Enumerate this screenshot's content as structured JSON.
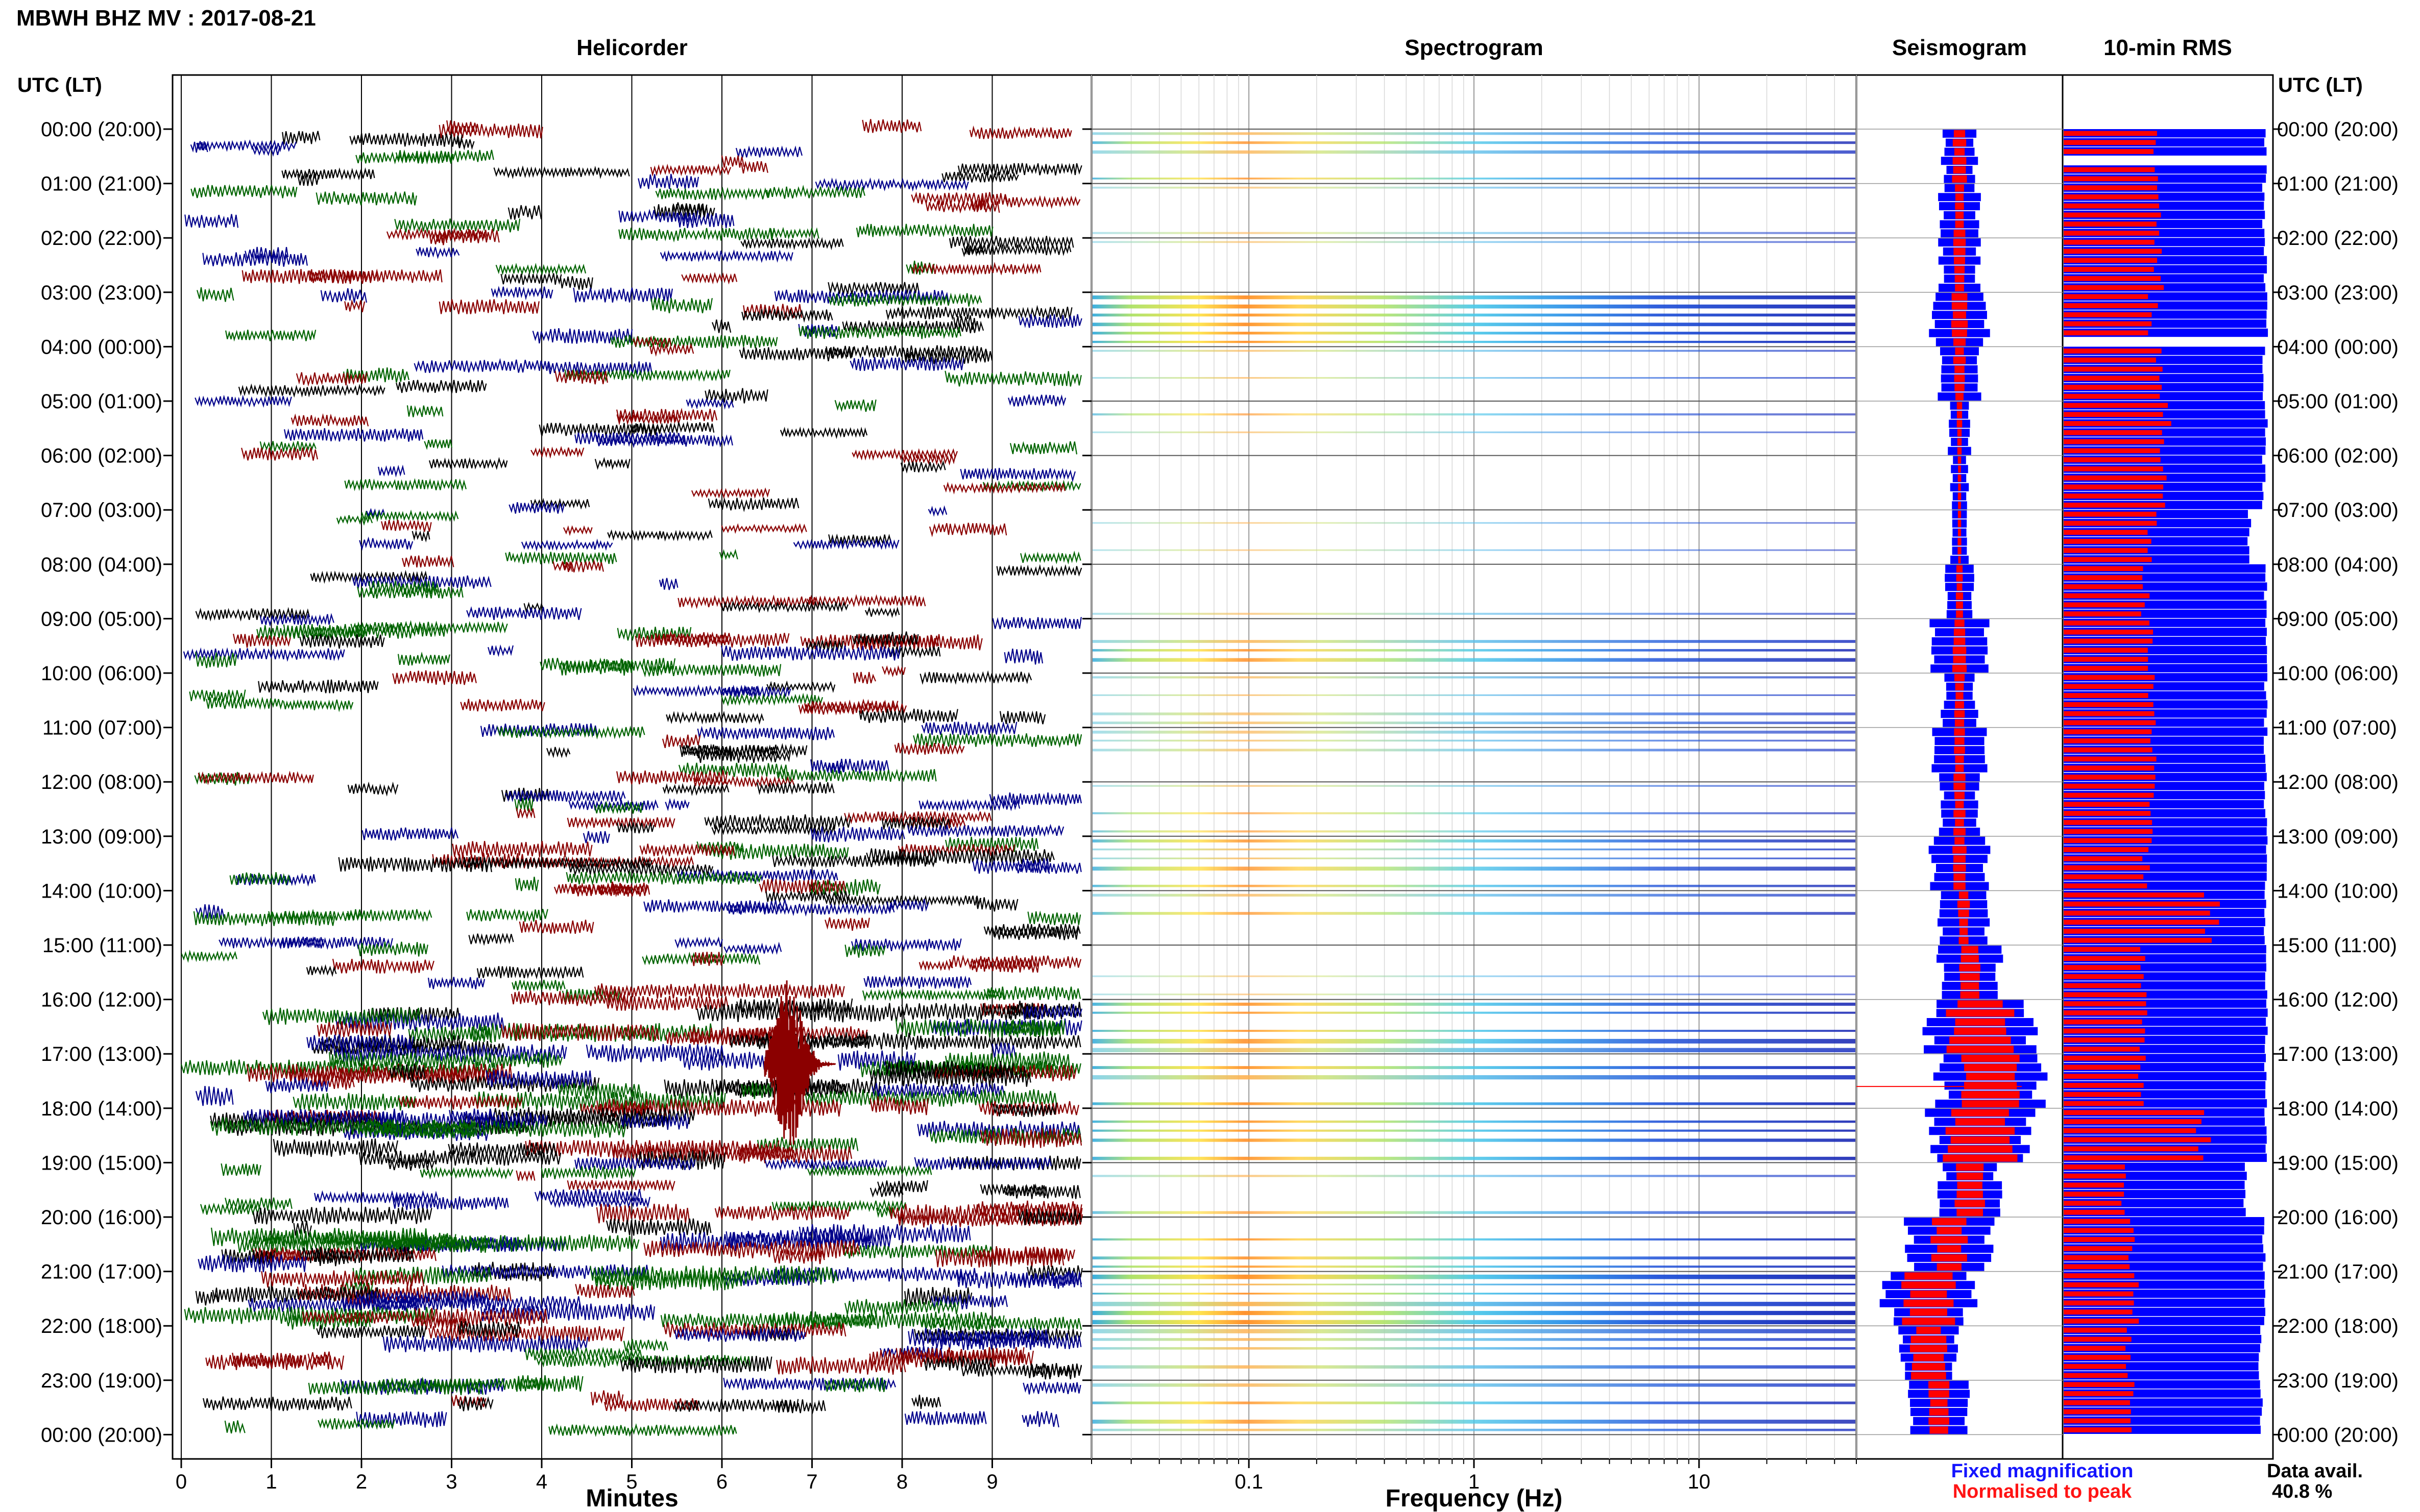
{
  "header": {
    "station_title": "MBWH BHZ MV : 2017-08-21"
  },
  "panels": {
    "helicorder_title": "Helicorder",
    "spectrogram_title": "Spectrogram",
    "seismogram_title": "Seismogram",
    "rms_title": "10-min RMS"
  },
  "axes": {
    "time_axis_label_left": "UTC (LT)",
    "time_axis_label_right": "UTC (LT)",
    "minutes_label": "Minutes",
    "frequency_label": "Frequency (Hz)"
  },
  "legend": {
    "fixed_label": "Fixed magnification",
    "fixed_color": "#1414ff",
    "peak_label": "Normalised to peak",
    "peak_color": "#ff1414"
  },
  "availability": {
    "label": "Data avail.",
    "value": "40.8 %"
  },
  "colors": {
    "trace_cycle": [
      "#8b0000",
      "#000000",
      "#00008b",
      "#006400"
    ],
    "rms_blue": "#0000ff",
    "rms_red": "#ff0000",
    "seis_blue": "#0000ff",
    "seis_red": "#ff0000"
  },
  "chart_data": [
    {
      "type": "line",
      "name": "helicorder",
      "title": "Helicorder",
      "xlabel": "Minutes",
      "xlim": [
        0,
        10
      ],
      "x_ticks": [
        "0",
        "1",
        "2",
        "3",
        "4",
        "5",
        "6",
        "7",
        "8",
        "9"
      ],
      "hour_labels": [
        "00:00 (20:00)",
        "01:00 (21:00)",
        "02:00 (22:00)",
        "03:00 (23:00)",
        "04:00 (00:00)",
        "05:00 (01:00)",
        "06:00 (02:00)",
        "07:00 (03:00)",
        "08:00 (04:00)",
        "09:00 (05:00)",
        "10:00 (06:00)",
        "11:00 (07:00)",
        "12:00 (08:00)",
        "13:00 (09:00)",
        "14:00 (10:00)",
        "15:00 (11:00)",
        "16:00 (12:00)",
        "17:00 (13:00)",
        "18:00 (14:00)",
        "19:00 (15:00)",
        "20:00 (16:00)",
        "21:00 (17:00)",
        "22:00 (18:00)",
        "23:00 (19:00)",
        "00:00 (20:00)"
      ],
      "lines_per_hour": 6,
      "activity_by_hour": [
        0.35,
        0.4,
        0.35,
        0.5,
        0.4,
        0.3,
        0.25,
        0.2,
        0.3,
        0.45,
        0.35,
        0.4,
        0.35,
        0.5,
        0.4,
        0.35,
        0.7,
        0.75,
        0.7,
        0.35,
        0.7,
        0.7,
        0.6,
        0.5
      ],
      "events": [
        {
          "hour": 17,
          "line": 0,
          "minute": 6.7,
          "label": ""
        }
      ]
    },
    {
      "type": "heatmap",
      "name": "spectrogram",
      "title": "Spectrogram",
      "xlabel": "Frequency (Hz)",
      "x_scale": "log",
      "xlim": [
        0.02,
        50
      ],
      "x_ticks": [
        "0.1",
        "1",
        "10"
      ],
      "x_tick_values": [
        0.1,
        1,
        10
      ],
      "peak_band_hz": [
        0.2,
        0.5
      ],
      "intensity_by_hour": [
        0.5,
        0.1,
        0.1,
        0.8,
        0.3,
        0.15,
        0.05,
        0.05,
        0.15,
        0.6,
        0.35,
        0.3,
        0.2,
        0.5,
        0.4,
        0.05,
        0.65,
        0.75,
        0.7,
        0.3,
        0.65,
        0.85,
        0.6,
        0.55
      ]
    },
    {
      "type": "line",
      "name": "seismogram",
      "title": "Seismogram",
      "series": [
        {
          "name": "Fixed magnification",
          "values": [
            0.3,
            0.35,
            0.35,
            0.55,
            0.35,
            0.2,
            0.15,
            0.15,
            0.25,
            0.5,
            0.3,
            0.45,
            0.35,
            0.5,
            0.45,
            0.55,
            0.95,
            0.95,
            0.9,
            0.55,
            0.75,
            0.8,
            0.55,
            0.5
          ]
        },
        {
          "name": "Normalised to peak",
          "values": [
            0.12,
            0.1,
            0.1,
            0.14,
            0.1,
            0.05,
            0.03,
            0.03,
            0.06,
            0.12,
            0.09,
            0.1,
            0.1,
            0.12,
            0.1,
            0.2,
            0.55,
            0.6,
            0.6,
            0.25,
            0.3,
            0.45,
            0.3,
            0.2
          ]
        }
      ],
      "center_by_hour": [
        0.5,
        0.5,
        0.5,
        0.5,
        0.5,
        0.5,
        0.5,
        0.5,
        0.5,
        0.5,
        0.5,
        0.5,
        0.5,
        0.5,
        0.52,
        0.55,
        0.6,
        0.65,
        0.6,
        0.55,
        0.45,
        0.35,
        0.35,
        0.4
      ]
    },
    {
      "type": "bar",
      "name": "rms",
      "title": "10-min RMS",
      "categories": [
        "00:00",
        "01:00",
        "02:00",
        "03:00",
        "04:00",
        "05:00",
        "06:00",
        "07:00",
        "08:00",
        "09:00",
        "10:00",
        "11:00",
        "12:00",
        "13:00",
        "14:00",
        "15:00",
        "16:00",
        "17:00",
        "18:00",
        "19:00",
        "20:00",
        "21:00",
        "22:00",
        "23:00"
      ],
      "series": [
        {
          "name": "Fixed magnification",
          "values": [
            0.98,
            0.97,
            0.98,
            0.99,
            0.97,
            0.98,
            0.97,
            0.9,
            0.98,
            0.98,
            0.98,
            0.98,
            0.98,
            0.98,
            0.98,
            0.98,
            0.98,
            0.98,
            0.98,
            0.88,
            0.97,
            0.98,
            0.95,
            0.96
          ]
        },
        {
          "name": "Normalised to peak",
          "values": [
            0.45,
            0.48,
            0.47,
            0.44,
            0.47,
            0.5,
            0.48,
            0.43,
            0.4,
            0.42,
            0.43,
            0.44,
            0.44,
            0.41,
            0.73,
            0.39,
            0.39,
            0.38,
            0.68,
            0.3,
            0.33,
            0.35,
            0.32,
            0.34
          ]
        }
      ],
      "gaps_at_hours": [
        0.5,
        3.8
      ]
    }
  ]
}
